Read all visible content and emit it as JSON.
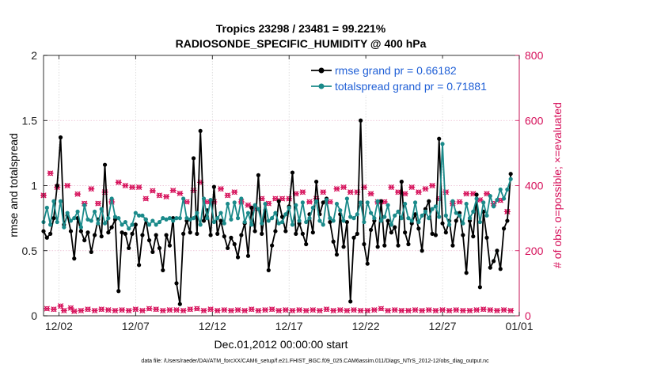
{
  "chart_data": {
    "type": "line",
    "title_line1": "Tropics 23298 / 23481 = 99.221%",
    "title_line2": "RADIOSONDE_SPECIFIC_HUMIDITY @ 400 hPa",
    "xlabel": "Dec.01,2012 00:00:00 start",
    "ylabel_left": "rmse and totalspread",
    "ylabel_right": "# of obs: o=possible; ×=evaluated",
    "ylim_left": [
      0,
      2
    ],
    "ylim_right": [
      0,
      800
    ],
    "xlim": [
      1,
      32
    ],
    "x_ticks": [
      {
        "value": 2,
        "label": "12/02"
      },
      {
        "value": 7,
        "label": "12/07"
      },
      {
        "value": 12,
        "label": "12/12"
      },
      {
        "value": 17,
        "label": "12/17"
      },
      {
        "value": 22,
        "label": "12/22"
      },
      {
        "value": 27,
        "label": "12/27"
      },
      {
        "value": 32,
        "label": "01/01"
      }
    ],
    "y_ticks_left": [
      {
        "value": 0,
        "label": "0"
      },
      {
        "value": 0.5,
        "label": "0.5"
      },
      {
        "value": 1,
        "label": "1"
      },
      {
        "value": 1.5,
        "label": "1.5"
      },
      {
        "value": 2,
        "label": "2"
      }
    ],
    "y_ticks_right": [
      {
        "value": 0,
        "label": "0"
      },
      {
        "value": 200,
        "label": "200"
      },
      {
        "value": 400,
        "label": "400"
      },
      {
        "value": 600,
        "label": "600"
      },
      {
        "value": 800,
        "label": "800"
      }
    ],
    "legend": {
      "position": "top-right",
      "entries": [
        {
          "label": "rmse grand pr = 0.66182",
          "color": "#000000"
        },
        {
          "label": "totalspread grand pr = 0.71881",
          "color": "#1a8a8a"
        }
      ]
    },
    "footnote": "data file: /Users/raeder/DAI/ATM_forcXX/CAM6_setup/f.e21.FHIST_BGC.f09_025.CAM6assim.011/Diags_NTrS_2012-12/obs_diag_output.nc",
    "colors": {
      "rmse": "#000000",
      "spread": "#1a8a8a",
      "obs": "#d6105a",
      "axis": "#000000"
    },
    "series": [
      {
        "name": "rmse",
        "values": [
          0.65,
          0.6,
          0.63,
          0.75,
          1.0,
          1.37,
          0.7,
          0.77,
          0.65,
          0.44,
          0.75,
          0.65,
          0.58,
          0.64,
          0.49,
          0.62,
          0.74,
          0.61,
          1.16,
          0.64,
          0.68,
          0.74,
          0.19,
          0.64,
          0.63,
          0.52,
          0.63,
          0.7,
          0.39,
          0.62,
          0.74,
          0.58,
          0.49,
          0.62,
          0.52,
          0.35,
          0.62,
          0.54,
          0.75,
          0.25,
          0.09,
          0.63,
          0.73,
          0.64,
          1.21,
          0.63,
          1.42,
          0.73,
          0.81,
          0.62,
          0.99,
          0.63,
          0.73,
          0.61,
          0.52,
          0.6,
          0.55,
          0.45,
          0.62,
          0.71,
          0.46,
          0.83,
          0.65,
          1.08,
          0.63,
          0.81,
          0.35,
          0.54,
          0.65,
          0.88,
          0.76,
          0.65,
          0.84,
          1.1,
          0.63,
          0.71,
          0.63,
          0.55,
          0.78,
          0.64,
          1.03,
          0.78,
          0.87,
          0.9,
          0.72,
          0.57,
          0.47,
          0.78,
          0.53,
          0.72,
          0.11,
          0.6,
          0.63,
          1.5,
          0.55,
          0.4,
          0.66,
          0.73,
          0.53,
          0.88,
          0.54,
          0.73,
          0.64,
          0.68,
          0.54,
          1.03,
          0.64,
          0.55,
          0.71,
          0.78,
          0.67,
          0.5,
          0.82,
          0.88,
          0.63,
          0.62,
          1.36,
          0.71,
          0.64,
          0.73,
          0.54,
          0.73,
          0.79,
          0.62,
          0.33,
          0.73,
          0.61,
          0.93,
          0.22,
          0.8,
          0.6,
          0.37,
          0.42,
          0.5,
          0.36,
          0.67,
          0.73,
          1.09
        ],
        "x_start": 1.0,
        "x_step": 0.2222
      },
      {
        "name": "totalspread",
        "values": [
          0.72,
          0.83,
          0.7,
          0.88,
          0.72,
          0.88,
          0.68,
          0.79,
          0.73,
          0.75,
          0.8,
          0.68,
          0.85,
          0.74,
          0.73,
          0.8,
          0.71,
          0.82,
          0.71,
          0.75,
          0.9,
          0.76,
          0.75,
          0.7,
          0.72,
          0.67,
          0.7,
          0.79,
          0.77,
          0.77,
          0.74,
          0.7,
          0.73,
          0.7,
          0.72,
          0.75,
          0.74,
          0.75,
          0.73,
          0.75,
          0.75,
          0.9,
          0.75,
          0.74,
          0.75,
          0.79,
          0.7,
          0.9,
          0.75,
          0.89,
          0.72,
          0.75,
          0.79,
          0.71,
          0.86,
          0.74,
          0.87,
          0.75,
          0.9,
          0.72,
          0.79,
          0.7,
          0.85,
          0.82,
          0.71,
          0.86,
          0.73,
          0.75,
          0.79,
          0.71,
          0.72,
          0.78,
          0.83,
          0.7,
          0.85,
          0.73,
          0.87,
          0.72,
          0.75,
          0.83,
          0.88,
          0.73,
          0.7,
          0.89,
          0.75,
          0.73,
          0.86,
          0.81,
          0.73,
          0.9,
          0.76,
          0.75,
          0.78,
          0.87,
          0.72,
          0.87,
          0.79,
          0.75,
          0.88,
          0.73,
          0.76,
          0.85,
          0.7,
          0.77,
          0.8,
          0.75,
          0.86,
          0.75,
          0.73,
          0.87,
          0.72,
          0.77,
          0.8,
          0.75,
          0.82,
          0.84,
          0.76,
          1.32,
          0.77,
          0.7,
          0.88,
          0.79,
          0.77,
          0.71,
          0.86,
          0.75,
          0.8,
          0.9,
          0.72,
          0.87,
          0.77,
          0.92,
          0.84,
          0.89,
          0.97,
          0.9,
          0.97,
          1.05
        ],
        "x_start": 1.0,
        "x_step": 0.2222
      }
    ],
    "obs_possible": {
      "x_start": 1.0,
      "x_step": 0.2222,
      "values": [
        370,
        22,
        438,
        20,
        395,
        30,
        16,
        400,
        24,
        14,
        374,
        16,
        345,
        20,
        390,
        16,
        345,
        20,
        380,
        18,
        350,
        16,
        410,
        18,
        400,
        16,
        395,
        20,
        395,
        16,
        360,
        22,
        384,
        20,
        370,
        16,
        366,
        18,
        385,
        18,
        376,
        16,
        350,
        20,
        385,
        22,
        410,
        16,
        350,
        20,
        350,
        16,
        390,
        18,
        370,
        16,
        380,
        18,
        350,
        16,
        340,
        20,
        330,
        16,
        360,
        18,
        345,
        20,
        360,
        16,
        360,
        18,
        360,
        16,
        375,
        18,
        380,
        16,
        350,
        18,
        360,
        16,
        380,
        20,
        350,
        16,
        390,
        18,
        395,
        16,
        380,
        18,
        380,
        16,
        395,
        16,
        375,
        18,
        350,
        22,
        350,
        16,
        395,
        18,
        380,
        16,
        375,
        16,
        395,
        18,
        380,
        16,
        390,
        18,
        400,
        16,
        360,
        18,
        380,
        16,
        345,
        18,
        350,
        16,
        375,
        16,
        375,
        18,
        356,
        20,
        375,
        18,
        345,
        16,
        355,
        18,
        320,
        16
      ]
    }
  }
}
